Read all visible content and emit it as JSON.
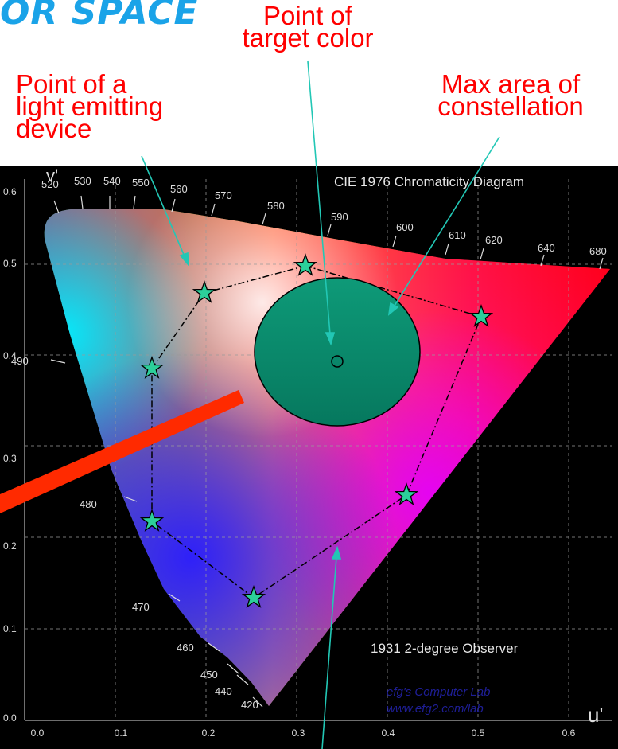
{
  "heading_fragment": "OR SPACE",
  "callouts": {
    "target": [
      "Point of",
      "target color"
    ],
    "device": [
      "Point of a",
      "light emitting",
      "device"
    ],
    "constellation": [
      "Max area of",
      "constellation"
    ]
  },
  "chart": {
    "title": "CIE 1976 Chromaticity Diagram",
    "observer": "1931 2-degree Observer",
    "watermark": [
      "efg's Computer Lab",
      "www.efg2.com/lab"
    ],
    "xlabel": "u'",
    "ylabel": "v'",
    "x_ticks": [
      "0.0",
      "0.1",
      "0.2",
      "0.3",
      "0.4",
      "0.5",
      "0.6"
    ],
    "y_ticks": [
      "0.0",
      "0.1",
      "0.2",
      "0.3",
      "0.4",
      "0.5",
      "0.6"
    ],
    "wavelengths": [
      "420",
      "440",
      "450",
      "460",
      "470",
      "480",
      "490",
      "520",
      "530",
      "540",
      "550",
      "560",
      "570",
      "580",
      "590",
      "600",
      "610",
      "620",
      "640",
      "680"
    ],
    "colors": {
      "background": "#000000",
      "star": "#2ccf9a",
      "circle": "#0b8a6a",
      "arrow": "#22c7b5",
      "bar": "#ff2a00"
    }
  }
}
